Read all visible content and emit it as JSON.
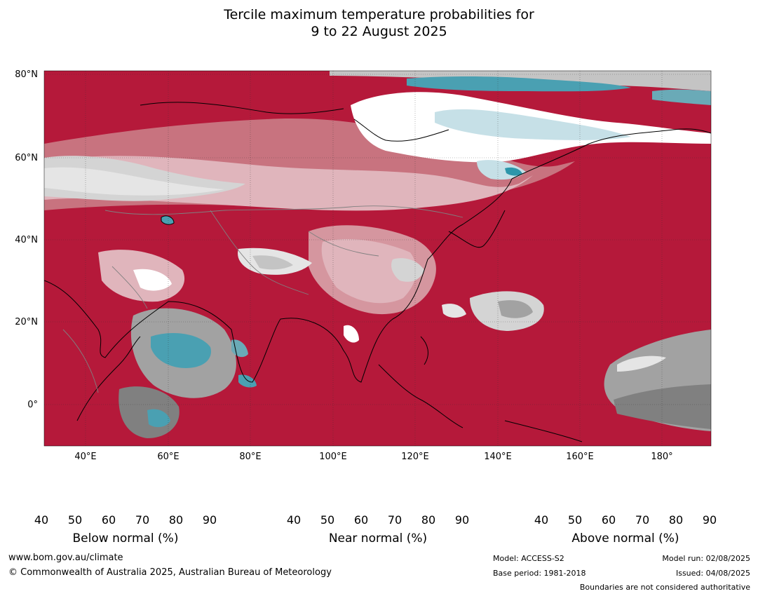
{
  "title": {
    "line1": "Tercile maximum temperature probabilities for",
    "line2": "9 to 22 August 2025"
  },
  "map": {
    "lat_labels": [
      "80°N",
      "60°N",
      "40°N",
      "20°N",
      "0°"
    ],
    "lon_labels": [
      "40°E",
      "60°E",
      "80°E",
      "100°E",
      "120°E",
      "140°E",
      "160°E",
      "180°"
    ],
    "colors": {
      "ocean_above_90": "#b5193a",
      "land_line": "#000000",
      "border_line": "#808080"
    }
  },
  "colorbars": [
    {
      "name": "below",
      "title": "Below normal (%)",
      "ticks": [
        "40",
        "50",
        "60",
        "70",
        "80",
        "90"
      ],
      "colors": [
        "#ffffff",
        "#c6e0e7",
        "#a6c7cd",
        "#89b4bf",
        "#6aaab7",
        "#4aa0b2",
        "#2d96aa"
      ]
    },
    {
      "name": "near",
      "title": "Near normal (%)",
      "ticks": [
        "40",
        "50",
        "60",
        "70",
        "80",
        "90"
      ],
      "colors": [
        "#ffffff",
        "#e5e5e5",
        "#d4d4d4",
        "#c4c4c4",
        "#b3b3b3",
        "#a2a2a2",
        "#808080"
      ]
    },
    {
      "name": "above",
      "title": "Above normal (%)",
      "ticks": [
        "40",
        "50",
        "60",
        "70",
        "80",
        "90"
      ],
      "colors": [
        "#ffffff",
        "#e0b5bc",
        "#d5969f",
        "#c8737f",
        "#c25562",
        "#b83248",
        "#b5193a"
      ]
    }
  ],
  "footer": {
    "website": "www.bom.gov.au/climate",
    "copyright": "© Commonwealth of Australia 2025, Australian Bureau of Meteorology",
    "model": "Model: ACCESS-S2",
    "base_period": "Base period: 1981-2018",
    "model_run": "Model run: 02/08/2025",
    "issued": "Issued: 04/08/2025",
    "disclaimer": "Boundaries are not considered authoritative"
  }
}
